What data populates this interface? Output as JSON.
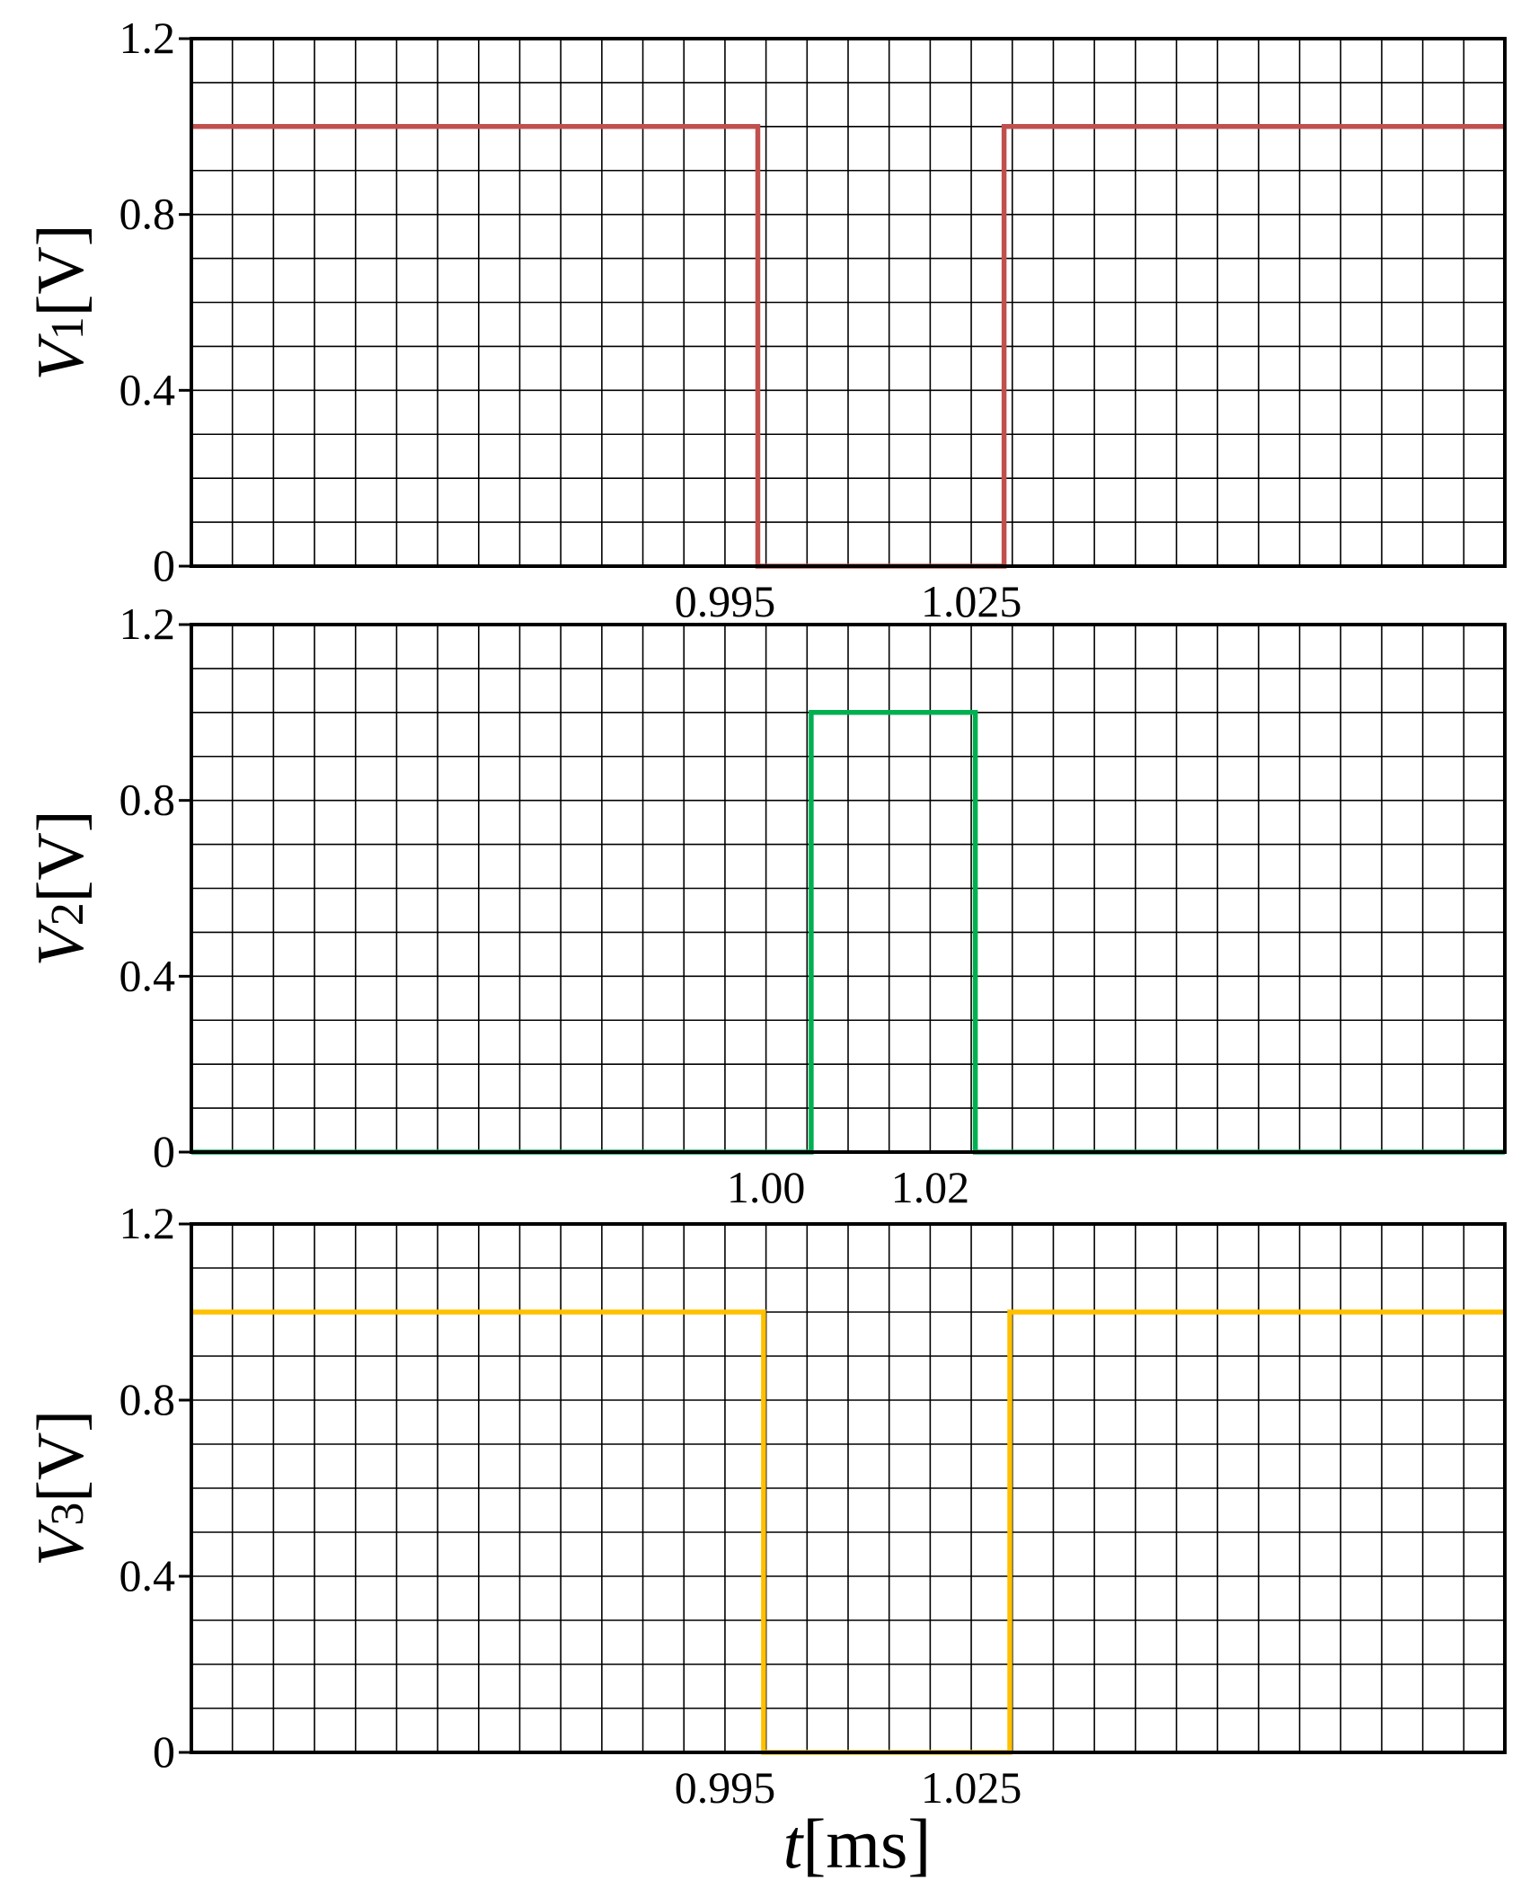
{
  "chart_data": [
    {
      "type": "line",
      "ylabel": {
        "var": "V",
        "sub": "1",
        "unit": "[V]"
      },
      "xlabel": "",
      "ylim": [
        0,
        1.2
      ],
      "yticks": [
        "0",
        "0.4",
        "0.8",
        "1.2"
      ],
      "xlim": [
        0.93,
        1.09
      ],
      "xtick_labels": [
        {
          "value": 0.995,
          "label": "0.995"
        },
        {
          "value": 1.025,
          "label": "1.025"
        }
      ],
      "grid": true,
      "series": [
        {
          "color": "#c0504d",
          "x": [
            0.93,
            0.999,
            0.999,
            1.029,
            1.029,
            1.09
          ],
          "y": [
            1.0,
            1.0,
            0.0,
            0.0,
            1.0,
            1.0
          ]
        }
      ]
    },
    {
      "type": "line",
      "ylabel": {
        "var": "V",
        "sub": "2",
        "unit": "[V]"
      },
      "xlabel": "",
      "ylim": [
        0,
        1.2
      ],
      "yticks": [
        "0",
        "0.4",
        "0.8",
        "1.2"
      ],
      "xlim": [
        0.93,
        1.09
      ],
      "xtick_labels": [
        {
          "value": 1.0,
          "label": "1.00"
        },
        {
          "value": 1.02,
          "label": "1.02"
        }
      ],
      "grid": true,
      "series": [
        {
          "color": "#00b050",
          "x": [
            0.93,
            1.0055,
            1.0055,
            1.0255,
            1.0255,
            1.09
          ],
          "y": [
            0.0,
            0.0,
            1.0,
            1.0,
            0.0,
            0.0
          ]
        }
      ]
    },
    {
      "type": "line",
      "ylabel": {
        "var": "V",
        "sub": "3",
        "unit": "[V]"
      },
      "xlabel": {
        "var": "t",
        "unit": "[ms]"
      },
      "ylim": [
        0,
        1.2
      ],
      "yticks": [
        "0",
        "0.4",
        "0.8",
        "1.2"
      ],
      "xlim": [
        0.93,
        1.09
      ],
      "xtick_labels": [
        {
          "value": 0.995,
          "label": "0.995"
        },
        {
          "value": 1.025,
          "label": "1.025"
        }
      ],
      "grid": true,
      "series": [
        {
          "color": "#ffc000",
          "x": [
            0.93,
            0.9997,
            0.9997,
            1.0297,
            1.0297,
            1.09
          ],
          "y": [
            1.0,
            1.0,
            0.0,
            0.0,
            1.0,
            1.0
          ]
        }
      ]
    }
  ]
}
